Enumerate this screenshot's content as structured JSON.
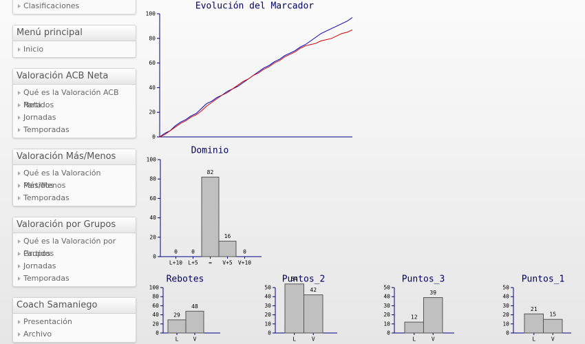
{
  "sidebar": [
    {
      "items": [
        "Clasificaciones"
      ]
    },
    {
      "title": "Menú principal",
      "items": [
        "Inicio"
      ]
    },
    {
      "title": "Valoración ACB Neta",
      "items": [
        "Qué es la Valoración ACB Neta",
        "Partidos",
        "Jornadas",
        "Temporadas"
      ]
    },
    {
      "title": "Valoración Más/Menos",
      "items": [
        "Qué es la Valoración Más/Menos",
        "Partidos",
        "Temporadas"
      ]
    },
    {
      "title": "Valoración por Grupos",
      "items": [
        "Qué es la Valoración por Grupos",
        "Partidos",
        "Jornadas",
        "Temporadas"
      ]
    },
    {
      "title": "Coach Samaniego",
      "items": [
        "Presentación",
        "Archivo"
      ]
    }
  ],
  "chart_data": [
    {
      "type": "line",
      "title": "Evolución del Marcador",
      "ylim": [
        0,
        100
      ],
      "yticks": [
        0,
        20,
        40,
        60,
        80,
        100
      ],
      "series": [
        {
          "color": "#0000c0",
          "values": [
            0,
            3,
            5,
            9,
            12,
            14,
            17,
            19,
            23,
            27,
            29,
            32,
            34,
            37,
            39,
            41,
            44,
            47,
            50,
            53,
            56,
            58,
            61,
            63,
            66,
            68,
            70,
            73,
            75,
            78,
            81,
            84,
            86,
            88,
            90,
            92,
            94,
            97
          ]
        },
        {
          "color": "#d00000",
          "values": [
            0,
            2,
            5,
            8,
            11,
            13,
            16,
            18,
            21,
            25,
            28,
            31,
            34,
            36,
            39,
            42,
            45,
            47,
            50,
            52,
            55,
            57,
            60,
            62,
            65,
            67,
            69,
            72,
            74,
            75,
            76,
            78,
            79,
            80,
            82,
            84,
            85,
            87
          ]
        }
      ]
    },
    {
      "type": "bar",
      "title": "Dominio",
      "categories": [
        "L+10",
        "L+5",
        "=",
        "V+5",
        "V+10"
      ],
      "values": [
        0,
        0,
        82,
        16,
        0
      ],
      "color": "#c0c0c0",
      "ylim": [
        0,
        100
      ],
      "yticks": [
        0,
        20,
        40,
        60,
        80,
        100
      ]
    },
    {
      "type": "bar",
      "title": "Rebotes",
      "categories": [
        "L",
        "V"
      ],
      "values": [
        29,
        48
      ],
      "color": "#c0c0c0",
      "ylim": [
        0,
        100
      ],
      "yticks": [
        0,
        20,
        40,
        60,
        80,
        100
      ]
    },
    {
      "type": "bar",
      "title": "Puntos_2",
      "categories": [
        "L",
        "V"
      ],
      "values": [
        54,
        42
      ],
      "color": "#c0c0c0",
      "ylim": [
        0,
        50
      ],
      "yticks": [
        0,
        10,
        20,
        30,
        40,
        50
      ]
    },
    {
      "type": "bar",
      "title": "Puntos_3",
      "categories": [
        "L",
        "V"
      ],
      "values": [
        12,
        39
      ],
      "color": "#c0c0c0",
      "ylim": [
        0,
        50
      ],
      "yticks": [
        0,
        10,
        20,
        30,
        40,
        50
      ]
    },
    {
      "type": "bar",
      "title": "Puntos_1",
      "categories": [
        "L",
        "V"
      ],
      "values": [
        21,
        15
      ],
      "color": "#c0c0c0",
      "ylim": [
        0,
        50
      ],
      "yticks": [
        0,
        10,
        20,
        30,
        40,
        50
      ]
    }
  ]
}
